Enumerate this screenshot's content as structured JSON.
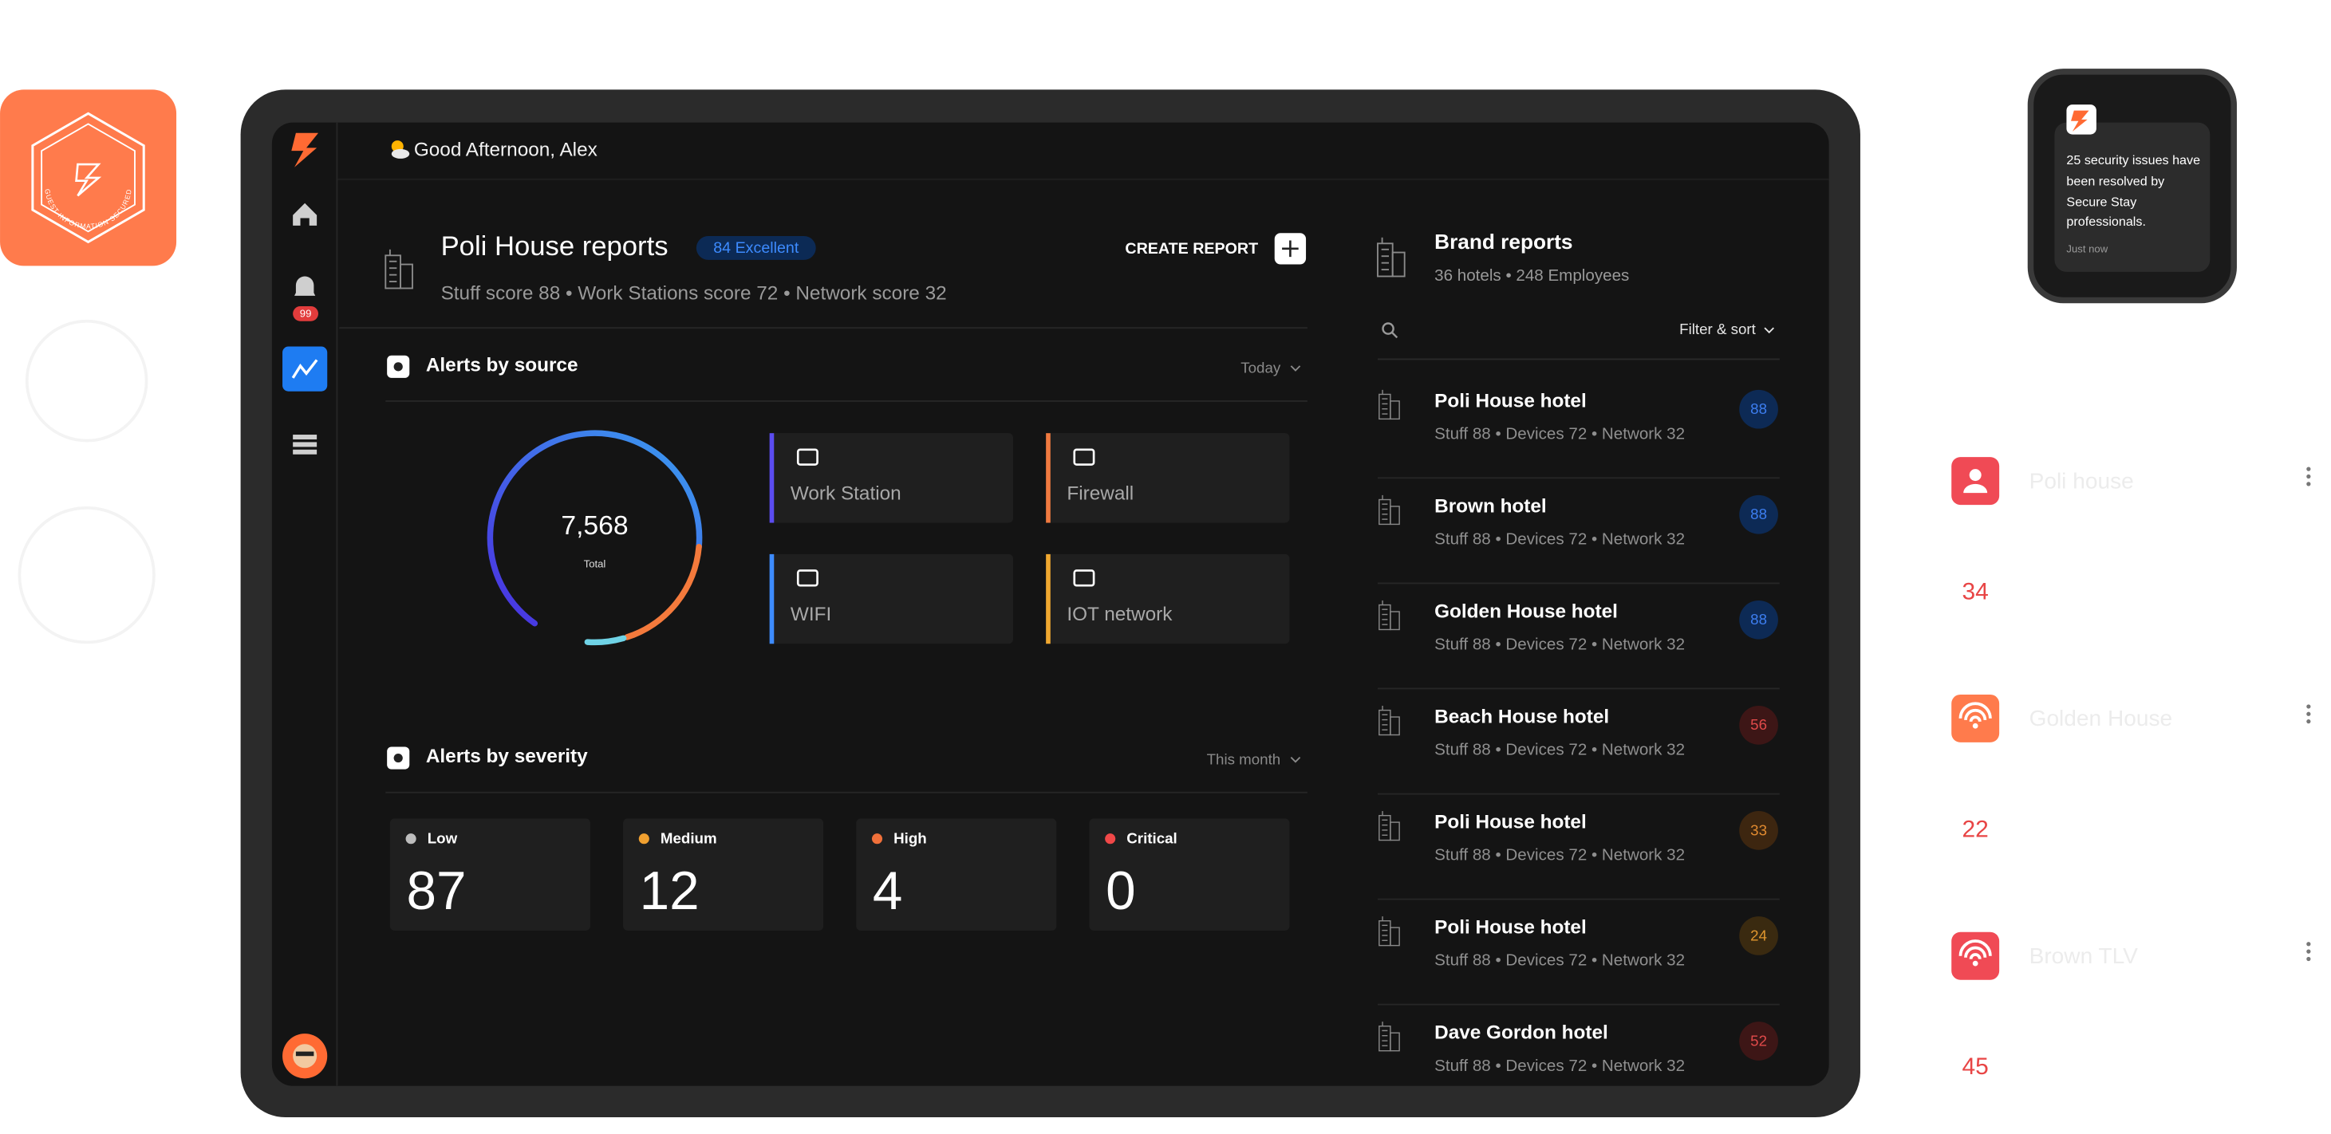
{
  "logo_badge": {
    "text": "GUEST INFORMATION SECURED"
  },
  "sidebar": {
    "notification_badge": "99"
  },
  "header": {
    "greeting": "Good Afternoon, Alex"
  },
  "report": {
    "title": "Poli House reports",
    "badge": "84 Excellent",
    "create_button": "CREATE REPORT",
    "scores": "Stuff score 88 • Work Stations score 72 • Network score 32"
  },
  "alerts_by_source": {
    "title": "Alerts by source",
    "filter": "Today",
    "total": "7,568",
    "total_label": "Total",
    "sources": [
      "Work Station",
      "Firewall",
      "WIFI",
      "IOT network"
    ]
  },
  "alerts_by_severity": {
    "title": "Alerts by severity",
    "filter": "This month",
    "levels": [
      {
        "label": "Low",
        "value": "87"
      },
      {
        "label": "Medium",
        "value": "12"
      },
      {
        "label": "High",
        "value": "4"
      },
      {
        "label": "Critical",
        "value": "0"
      }
    ]
  },
  "brand_reports": {
    "title": "Brand reports",
    "subtitle": "36 hotels • 248 Employees",
    "filter": "Filter & sort",
    "hotels": [
      {
        "name": "Poli House hotel",
        "details": "Stuff 88 • Devices 72 • Network 32",
        "score": "88"
      },
      {
        "name": "Brown hotel",
        "details": "Stuff 88 • Devices 72 • Network 32",
        "score": "88"
      },
      {
        "name": "Golden House hotel",
        "details": "Stuff 88 • Devices 72 • Network 32",
        "score": "88"
      },
      {
        "name": "Beach House hotel",
        "details": "Stuff 88 • Devices 72 • Network 32",
        "score": "56"
      },
      {
        "name": "Poli House hotel",
        "details": "Stuff 88 • Devices 72 • Network 32",
        "score": "33"
      },
      {
        "name": "Poli House hotel",
        "details": "Stuff 88 • Devices 72 • Network 32",
        "score": "24"
      },
      {
        "name": "Dave Gordon hotel",
        "details": "Stuff 88 • Devices 72 • Network 32",
        "score": "52"
      }
    ]
  },
  "notification": {
    "message": "25 security issues have been resolved by Secure Stay professionals.",
    "time": "Just now"
  },
  "side_list": [
    {
      "name": "Poli house",
      "count": "34"
    },
    {
      "name": "Golden House",
      "count": "22"
    },
    {
      "name": "Brown TLV",
      "count": "45"
    }
  ]
}
